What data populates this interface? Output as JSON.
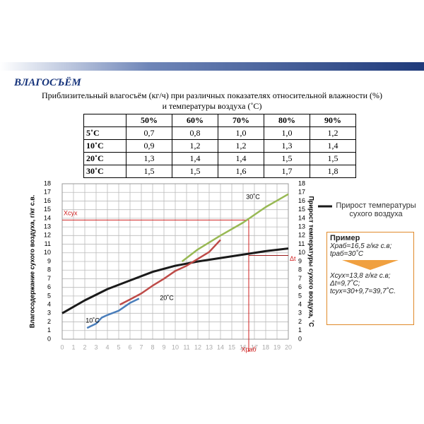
{
  "header": {
    "title": "ВЛАГОСЪЁМ",
    "subtitle_1": "Приблизительный влагосъём (кг/ч) при различных показателях относительной влажности (%)",
    "subtitle_2": "и температуры воздуха (˚С)"
  },
  "table": {
    "header": [
      "50%",
      "60%",
      "70%",
      "80%",
      "90%"
    ],
    "rows": [
      {
        "label": "5˚С",
        "values": [
          "0,7",
          "0,8",
          "1,0",
          "1,0",
          "1,2"
        ]
      },
      {
        "label": "10˚С",
        "values": [
          "0,9",
          "1,2",
          "1,2",
          "1,3",
          "1,4"
        ]
      },
      {
        "label": "20˚С",
        "values": [
          "1,3",
          "1,4",
          "1,4",
          "1,5",
          "1,5"
        ]
      },
      {
        "label": "30˚С",
        "values": [
          "1,5",
          "1,5",
          "1,6",
          "1,7",
          "1,8"
        ]
      }
    ]
  },
  "chart_data": {
    "type": "line",
    "y_label": "Влагосодержание сухого воздуха, г/кг с.в.",
    "y2_label": "Прирост температуры сухого воздуха, ˚С",
    "xlim": [
      0,
      20
    ],
    "xticks": [
      0,
      1,
      2,
      3,
      4,
      5,
      6,
      7,
      8,
      9,
      10,
      11,
      12,
      13,
      14,
      15,
      16,
      17,
      18,
      19,
      20
    ],
    "ylim": [
      0,
      18
    ],
    "yticks": [
      0,
      1,
      2,
      3,
      4,
      5,
      6,
      7,
      8,
      9,
      10,
      11,
      12,
      13,
      14,
      15,
      16,
      17,
      18
    ],
    "y2lim": [
      0,
      18
    ],
    "y2ticks": [
      0,
      1,
      2,
      3,
      4,
      5,
      6,
      7,
      8,
      9,
      10,
      11,
      12,
      13,
      14,
      15,
      16,
      17,
      18
    ],
    "grid": true,
    "series": [
      {
        "name": "Прирост температуры сухого воздуха",
        "color": "#1a1a1a",
        "axis": "y2",
        "x": [
          0,
          2,
          4,
          6,
          8,
          10,
          12,
          14,
          16,
          18,
          20
        ],
        "values": [
          3,
          4.5,
          5.8,
          6.8,
          7.8,
          8.5,
          9,
          9.4,
          9.8,
          10.2,
          10.5
        ]
      },
      {
        "name": "10˚C",
        "color": "#4a7ebb",
        "x": [
          2.2,
          3,
          3.5,
          4,
          5,
          6,
          6.8
        ],
        "values": [
          1.3,
          1.8,
          2.5,
          2.8,
          3.3,
          4.2,
          4.7
        ]
      },
      {
        "name": "20˚C",
        "color": "#be4b48",
        "x": [
          5.1,
          6,
          7,
          8,
          9,
          10,
          11,
          12,
          13,
          14
        ],
        "values": [
          4,
          4.6,
          5.3,
          6.2,
          7,
          7.9,
          8.5,
          9.3,
          10.1,
          11.5
        ]
      },
      {
        "name": "30˚C",
        "color": "#98b954",
        "x": [
          10.6,
          12,
          14,
          16,
          18,
          20
        ],
        "values": [
          9,
          10.4,
          12,
          13.5,
          15.3,
          16.8
        ]
      }
    ],
    "markers": {
      "x_label": "Xраб",
      "x": 16.5,
      "y_label": "Xсух",
      "y": 13.8,
      "dt_label": "Δt",
      "dt": 9.7
    },
    "example": {
      "title": "Пример",
      "lines_before": [
        "Xраб=16,5 г/кг с.в;",
        "tраб=30˚C"
      ],
      "lines_after": [
        "Xсух=13,8 г/кг с.в;",
        "Δt=9,7˚C;",
        "tсух=30+9,7=39,7˚C."
      ]
    }
  }
}
